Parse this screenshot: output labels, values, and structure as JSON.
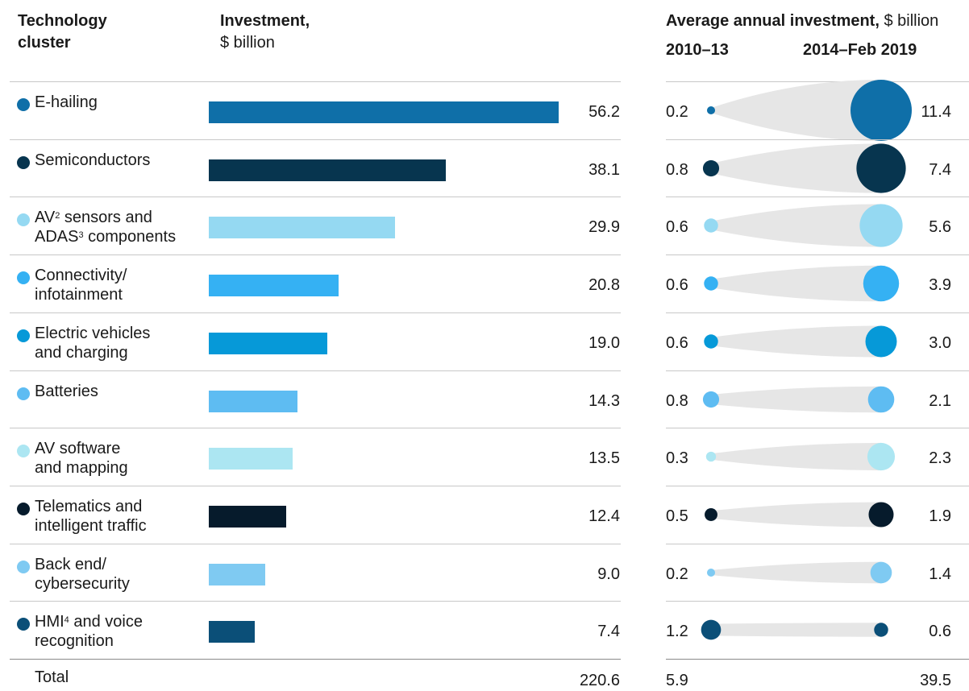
{
  "headers": {
    "cluster_line1": "Technology",
    "cluster_line2": "cluster",
    "investment_bold": "Investment,",
    "investment_unit": "$ billion",
    "avg_bold": "Average annual investment,",
    "avg_unit": "$ billion",
    "period1": "2010–13",
    "period2": "2014–Feb 2019"
  },
  "chart_data": {
    "type": "bar",
    "categories": [
      "E-hailing",
      "Semiconductors",
      "AV² sensors and ADAS³ components",
      "Connectivity/ infotainment",
      "Electric vehicles and charging",
      "Batteries",
      "AV software and mapping",
      "Telematics and intelligent traffic",
      "Back end/ cybersecurity",
      "HMI⁴ and voice recognition"
    ],
    "rows": [
      {
        "l1": "E-hailing",
        "l2": "",
        "sup1": "",
        "sup2": "",
        "l1b": "",
        "l2b": "",
        "color": "#0f6fa8",
        "investment": "56.2",
        "v1": "0.2",
        "v2": "11.4"
      },
      {
        "l1": "Semiconductors",
        "l2": "",
        "sup1": "",
        "sup2": "",
        "l1b": "",
        "l2b": "",
        "color": "#07354f",
        "investment": "38.1",
        "v1": "0.8",
        "v2": "7.4"
      },
      {
        "l1": "AV",
        "l2": "ADAS",
        "sup1": "2",
        "sup2": "3",
        "l1b": " sensors and",
        "l2b": " components",
        "color": "#95d9f2",
        "investment": "29.9",
        "v1": "0.6",
        "v2": "5.6"
      },
      {
        "l1": "Connectivity/",
        "l2": "infotainment",
        "sup1": "",
        "sup2": "",
        "l1b": "",
        "l2b": "",
        "color": "#35b1f3",
        "investment": "20.8",
        "v1": "0.6",
        "v2": "3.9"
      },
      {
        "l1": "Electric vehicles",
        "l2": "and charging",
        "sup1": "",
        "sup2": "",
        "l1b": "",
        "l2b": "",
        "color": "#0699d8",
        "investment": "19.0",
        "v1": "0.6",
        "v2": "3.0"
      },
      {
        "l1": "Batteries",
        "l2": "",
        "sup1": "",
        "sup2": "",
        "l1b": "",
        "l2b": "",
        "color": "#5ebcf2",
        "investment": "14.3",
        "v1": "0.8",
        "v2": "2.1"
      },
      {
        "l1": "AV software",
        "l2": "and mapping",
        "sup1": "",
        "sup2": "",
        "l1b": "",
        "l2b": "",
        "color": "#ace6f2",
        "investment": "13.5",
        "v1": "0.3",
        "v2": "2.3"
      },
      {
        "l1": "Telematics and",
        "l2": "intelligent traffic",
        "sup1": "",
        "sup2": "",
        "l1b": "",
        "l2b": "",
        "color": "#061b2c",
        "investment": "12.4",
        "v1": "0.5",
        "v2": "1.9"
      },
      {
        "l1": "Back end/",
        "l2": "cybersecurity",
        "sup1": "",
        "sup2": "",
        "l1b": "",
        "l2b": "",
        "color": "#7fcaf2",
        "investment": "9.0",
        "v1": "0.2",
        "v2": "1.4"
      },
      {
        "l1": "HMI",
        "l2": "recognition",
        "sup1": "4",
        "sup2": "",
        "l1b": " and voice",
        "l2b": "",
        "color": "#0b4f78",
        "investment": "7.4",
        "v1": "1.2",
        "v2": "0.6"
      }
    ],
    "xlim": [
      0,
      56.2
    ],
    "total": {
      "label": "Total",
      "investment": "220.6",
      "v1": "5.9",
      "v2": "39.5"
    }
  }
}
